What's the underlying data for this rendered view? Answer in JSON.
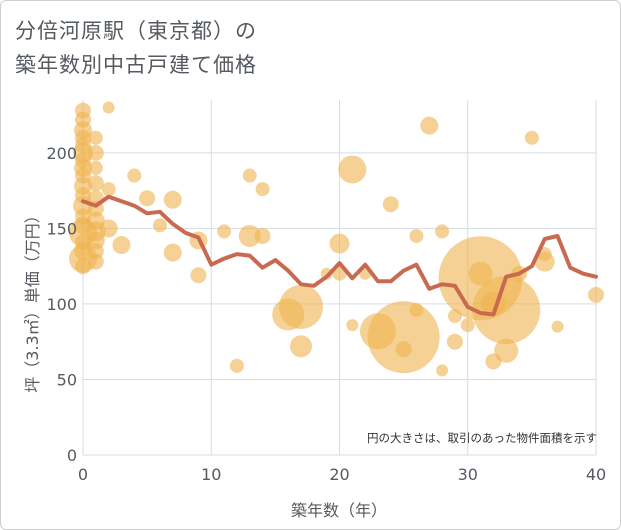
{
  "chart_data": {
    "type": "scatter",
    "title_lines": [
      "分倍河原駅（東京都）の",
      "築年数別中古戸建て価格"
    ],
    "xlabel": "築年数（年）",
    "ylabel": "坪（3.3㎡）単価（万円）",
    "xlim": [
      0,
      40
    ],
    "ylim": [
      0,
      235
    ],
    "x_ticks": [
      0,
      10,
      20,
      30,
      40
    ],
    "y_ticks": [
      0,
      50,
      100,
      150,
      200
    ],
    "note": "円の大きさは、取引のあった物件面積を示す",
    "colors": {
      "bubble": "#f0b34e",
      "line": "#c96a50",
      "grid": "#d2dde6"
    },
    "bubbles": [
      {
        "x": 0,
        "y": 228,
        "s": 8
      },
      {
        "x": 0,
        "y": 222,
        "s": 8
      },
      {
        "x": 0,
        "y": 215,
        "s": 9
      },
      {
        "x": 0,
        "y": 210,
        "s": 8
      },
      {
        "x": 0,
        "y": 205,
        "s": 8
      },
      {
        "x": 0,
        "y": 200,
        "s": 10
      },
      {
        "x": 0,
        "y": 195,
        "s": 8
      },
      {
        "x": 0,
        "y": 190,
        "s": 9
      },
      {
        "x": 0,
        "y": 185,
        "s": 8
      },
      {
        "x": 0,
        "y": 178,
        "s": 9
      },
      {
        "x": 0,
        "y": 172,
        "s": 8
      },
      {
        "x": 0,
        "y": 165,
        "s": 10
      },
      {
        "x": 0,
        "y": 158,
        "s": 8
      },
      {
        "x": 0,
        "y": 152,
        "s": 9
      },
      {
        "x": 0,
        "y": 147,
        "s": 14
      },
      {
        "x": 0,
        "y": 141,
        "s": 8
      },
      {
        "x": 0,
        "y": 135,
        "s": 9
      },
      {
        "x": 0,
        "y": 130,
        "s": 14
      },
      {
        "x": 0,
        "y": 125,
        "s": 8
      },
      {
        "x": 1,
        "y": 210,
        "s": 7
      },
      {
        "x": 1,
        "y": 200,
        "s": 8
      },
      {
        "x": 1,
        "y": 190,
        "s": 7
      },
      {
        "x": 1,
        "y": 180,
        "s": 8
      },
      {
        "x": 1,
        "y": 170,
        "s": 8
      },
      {
        "x": 1,
        "y": 163,
        "s": 8
      },
      {
        "x": 1,
        "y": 155,
        "s": 9
      },
      {
        "x": 1,
        "y": 148,
        "s": 10
      },
      {
        "x": 1,
        "y": 142,
        "s": 9
      },
      {
        "x": 1,
        "y": 135,
        "s": 8
      },
      {
        "x": 1,
        "y": 128,
        "s": 8
      },
      {
        "x": 2,
        "y": 230,
        "s": 6
      },
      {
        "x": 2,
        "y": 176,
        "s": 7
      },
      {
        "x": 2,
        "y": 150,
        "s": 9
      },
      {
        "x": 3,
        "y": 139,
        "s": 9
      },
      {
        "x": 4,
        "y": 185,
        "s": 7
      },
      {
        "x": 5,
        "y": 170,
        "s": 8
      },
      {
        "x": 6,
        "y": 152,
        "s": 7
      },
      {
        "x": 7,
        "y": 169,
        "s": 9
      },
      {
        "x": 7,
        "y": 134,
        "s": 9
      },
      {
        "x": 9,
        "y": 142,
        "s": 9
      },
      {
        "x": 9,
        "y": 119,
        "s": 8
      },
      {
        "x": 11,
        "y": 148,
        "s": 7
      },
      {
        "x": 12,
        "y": 59,
        "s": 7
      },
      {
        "x": 13,
        "y": 185,
        "s": 7
      },
      {
        "x": 13,
        "y": 145,
        "s": 11
      },
      {
        "x": 14,
        "y": 176,
        "s": 7
      },
      {
        "x": 14,
        "y": 145,
        "s": 8
      },
      {
        "x": 16,
        "y": 93,
        "s": 16
      },
      {
        "x": 17,
        "y": 98,
        "s": 22
      },
      {
        "x": 17,
        "y": 72,
        "s": 11
      },
      {
        "x": 19,
        "y": 120,
        "s": 6
      },
      {
        "x": 20,
        "y": 140,
        "s": 10
      },
      {
        "x": 20,
        "y": 120,
        "s": 7
      },
      {
        "x": 21,
        "y": 189,
        "s": 14
      },
      {
        "x": 21,
        "y": 86,
        "s": 6
      },
      {
        "x": 22,
        "y": 120,
        "s": 6
      },
      {
        "x": 23,
        "y": 82,
        "s": 18
      },
      {
        "x": 24,
        "y": 166,
        "s": 8
      },
      {
        "x": 25,
        "y": 78,
        "s": 36
      },
      {
        "x": 25,
        "y": 70,
        "s": 8
      },
      {
        "x": 26,
        "y": 145,
        "s": 7
      },
      {
        "x": 26,
        "y": 96,
        "s": 7
      },
      {
        "x": 27,
        "y": 218,
        "s": 9
      },
      {
        "x": 28,
        "y": 148,
        "s": 7
      },
      {
        "x": 28,
        "y": 56,
        "s": 6
      },
      {
        "x": 29,
        "y": 92,
        "s": 7
      },
      {
        "x": 29,
        "y": 75,
        "s": 8
      },
      {
        "x": 30,
        "y": 86,
        "s": 7
      },
      {
        "x": 31,
        "y": 117,
        "s": 42
      },
      {
        "x": 31,
        "y": 120,
        "s": 12
      },
      {
        "x": 32,
        "y": 100,
        "s": 12
      },
      {
        "x": 32,
        "y": 62,
        "s": 8
      },
      {
        "x": 33,
        "y": 69,
        "s": 12
      },
      {
        "x": 33,
        "y": 96,
        "s": 34
      },
      {
        "x": 34,
        "y": 120,
        "s": 8
      },
      {
        "x": 35,
        "y": 210,
        "s": 7
      },
      {
        "x": 36,
        "y": 128,
        "s": 10
      },
      {
        "x": 36,
        "y": 133,
        "s": 7
      },
      {
        "x": 37,
        "y": 85,
        "s": 6
      },
      {
        "x": 40,
        "y": 106,
        "s": 8
      }
    ],
    "trend_line": [
      {
        "x": 0,
        "y": 168
      },
      {
        "x": 1,
        "y": 165
      },
      {
        "x": 2,
        "y": 171
      },
      {
        "x": 3,
        "y": 168
      },
      {
        "x": 4,
        "y": 165
      },
      {
        "x": 5,
        "y": 160
      },
      {
        "x": 6,
        "y": 161
      },
      {
        "x": 7,
        "y": 153
      },
      {
        "x": 8,
        "y": 147
      },
      {
        "x": 9,
        "y": 144
      },
      {
        "x": 10,
        "y": 126
      },
      {
        "x": 11,
        "y": 130
      },
      {
        "x": 12,
        "y": 133
      },
      {
        "x": 13,
        "y": 132
      },
      {
        "x": 14,
        "y": 124
      },
      {
        "x": 15,
        "y": 129
      },
      {
        "x": 16,
        "y": 122
      },
      {
        "x": 17,
        "y": 113
      },
      {
        "x": 18,
        "y": 112
      },
      {
        "x": 19,
        "y": 118
      },
      {
        "x": 20,
        "y": 127
      },
      {
        "x": 21,
        "y": 117
      },
      {
        "x": 22,
        "y": 126
      },
      {
        "x": 23,
        "y": 115
      },
      {
        "x": 24,
        "y": 115
      },
      {
        "x": 25,
        "y": 122
      },
      {
        "x": 26,
        "y": 126
      },
      {
        "x": 27,
        "y": 110
      },
      {
        "x": 28,
        "y": 113
      },
      {
        "x": 29,
        "y": 112
      },
      {
        "x": 30,
        "y": 98
      },
      {
        "x": 31,
        "y": 94
      },
      {
        "x": 32,
        "y": 93
      },
      {
        "x": 33,
        "y": 118
      },
      {
        "x": 34,
        "y": 120
      },
      {
        "x": 35,
        "y": 125
      },
      {
        "x": 36,
        "y": 143
      },
      {
        "x": 37,
        "y": 145
      },
      {
        "x": 38,
        "y": 124
      },
      {
        "x": 39,
        "y": 120
      },
      {
        "x": 40,
        "y": 118
      }
    ]
  }
}
